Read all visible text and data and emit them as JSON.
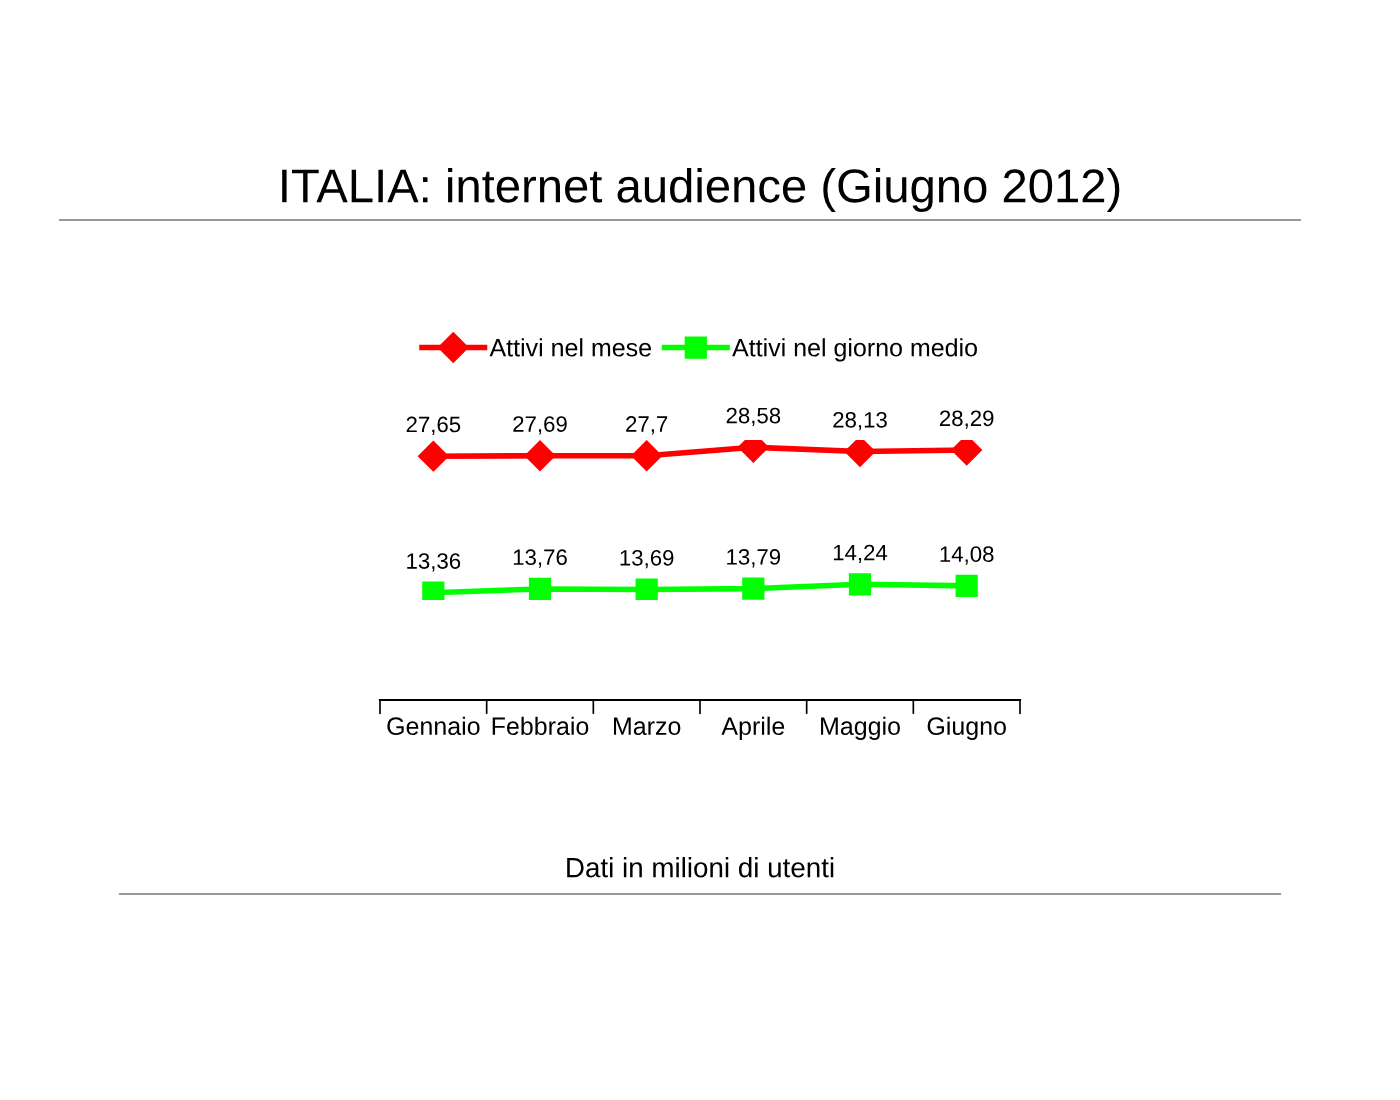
{
  "chart_data": {
    "type": "line",
    "title": "ITALIA: internet audience (Giugno 2012)",
    "categories": [
      "Gennaio",
      "Febbraio",
      "Marzo",
      "Aprile",
      "Maggio",
      "Giugno"
    ],
    "series": [
      {
        "name": "Attivi nel mese",
        "color": "#ff0000",
        "marker": "diamond",
        "values": [
          27.65,
          27.69,
          27.7,
          28.58,
          28.13,
          28.29
        ],
        "value_labels": [
          "27,65",
          "27,69",
          "27,7",
          "28,58",
          "28,13",
          "28,29"
        ]
      },
      {
        "name": "Attivi nel giorno medio",
        "color": "#00ff00",
        "marker": "square",
        "values": [
          13.36,
          13.76,
          13.69,
          13.79,
          14.24,
          14.08
        ],
        "value_labels": [
          "13,36",
          "13,76",
          "13,69",
          "13,79",
          "14,24",
          "14,08"
        ]
      }
    ],
    "tick_labels": "x",
    "legend": "top",
    "grid": false,
    "annotations": [
      "Dati in milioni di utenti"
    ]
  }
}
